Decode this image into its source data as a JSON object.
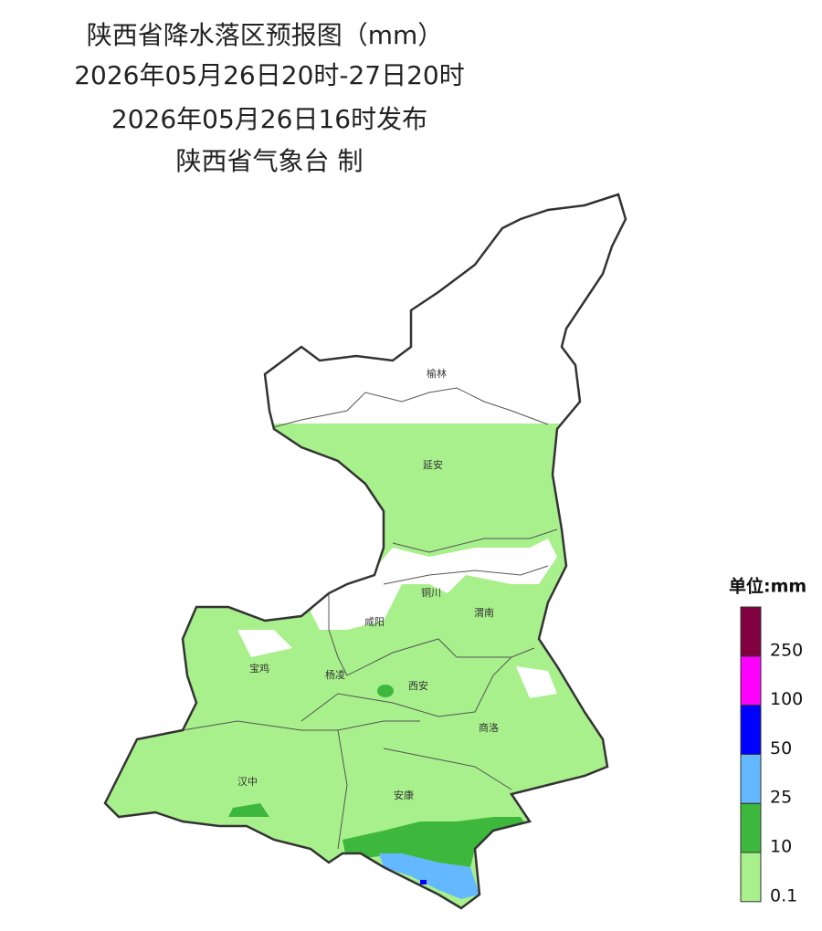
{
  "header": {
    "title": "陕西省降水落区预报图（mm）",
    "period": "2026年05月26日20时-27日20时",
    "issued": "2026年05月26日16时发布",
    "issuer": "陕西省气象台 制"
  },
  "cities": [
    {
      "label": "榆林"
    },
    {
      "label": "延安"
    },
    {
      "label": "铜川"
    },
    {
      "label": "咸阳"
    },
    {
      "label": "渭南"
    },
    {
      "label": "宝鸡"
    },
    {
      "label": "杨凌"
    },
    {
      "label": "西安"
    },
    {
      "label": "商洛"
    },
    {
      "label": "汉中"
    },
    {
      "label": "安康"
    }
  ],
  "legend": {
    "title": "单位:mm",
    "levels": [
      {
        "label": "0.1",
        "color": "#a8f08c"
      },
      {
        "label": "10",
        "color": "#3db83d"
      },
      {
        "label": "25",
        "color": "#63b8ff"
      },
      {
        "label": "50",
        "color": "#0000fe"
      },
      {
        "label": "100",
        "color": "#fe00fe"
      },
      {
        "label": "250",
        "color": "#800040"
      }
    ]
  }
}
